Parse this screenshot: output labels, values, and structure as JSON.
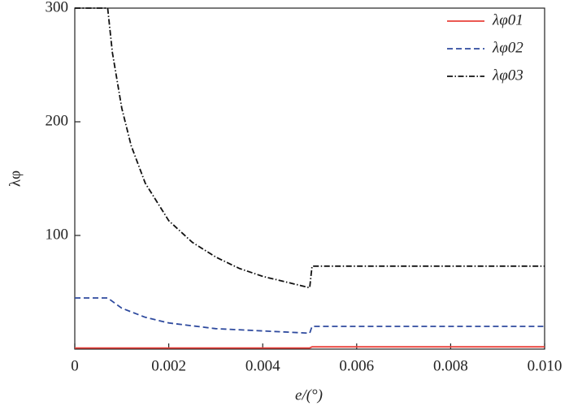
{
  "chart_data": {
    "type": "line",
    "xlabel": "e/(°)",
    "ylabel": "λφ",
    "xlim": [
      0,
      0.01
    ],
    "ylim": [
      0,
      300
    ],
    "xticks": [
      0,
      0.002,
      0.004,
      0.006,
      0.008,
      {
        "value": 0.01,
        "label": "0.010"
      }
    ],
    "yticks": [
      100,
      200,
      300
    ],
    "legend": "upper right",
    "series": [
      {
        "name": "λφ01",
        "color": "#e8403a",
        "dash": "solid",
        "x": [
          0,
          0.005,
          0.00505,
          0.01
        ],
        "values": [
          1,
          1,
          2,
          2
        ]
      },
      {
        "name": "λφ02",
        "color": "#2e4a9e",
        "dash": "dashed",
        "x": [
          0,
          0.0007,
          0.001,
          0.0015,
          0.002,
          0.003,
          0.004,
          0.005,
          0.00505,
          0.01
        ],
        "values": [
          45,
          45,
          36,
          28,
          23,
          18,
          16,
          14,
          20,
          20
        ]
      },
      {
        "name": "λφ03",
        "color": "#111111",
        "dash": "dashdot",
        "x": [
          0,
          0.0007,
          0.0008,
          0.001,
          0.0012,
          0.0015,
          0.002,
          0.0025,
          0.003,
          0.0035,
          0.004,
          0.0045,
          0.005,
          0.00505,
          0.01
        ],
        "values": [
          300,
          300,
          261,
          212,
          179,
          146,
          113,
          94,
          81,
          71,
          64,
          59,
          54,
          73,
          73
        ]
      }
    ]
  }
}
